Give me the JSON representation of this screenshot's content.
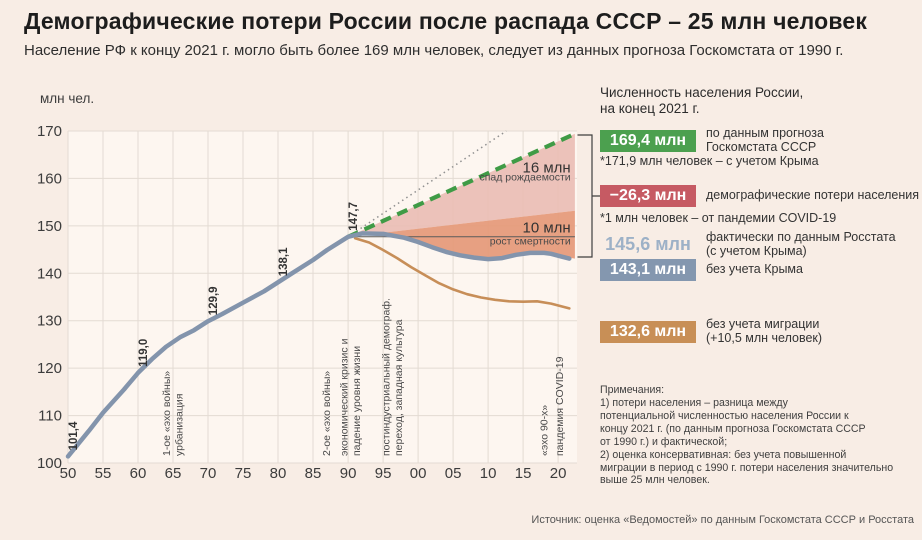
{
  "header": {
    "title": "Демографические потери России после распада СССР – 25 млн человек",
    "subtitle": "Население РФ к концу 2021 г. могло быть более 169 млн человек, следует из данных прогноза Госкомстата от 1990 г."
  },
  "legend": {
    "heading": "Численность населения России,\nна конец 2021 г.",
    "items": [
      {
        "value": "169,4 млн",
        "label": "по данным прогноза\nГоскомстата СССР",
        "color": "#4ca04f"
      },
      {
        "value": "−26,3 млн",
        "label": "демографические потери населения",
        "color": "#c65a63"
      },
      {
        "value": "145,6 млн",
        "label": "фактически по данным Росстата\n(с учетом Крыма)",
        "color": "#9db1c7"
      },
      {
        "value": "143,1 млн",
        "label": "без учета Крыма",
        "color": "#8497af"
      },
      {
        "value": "132,6 млн",
        "label": "без учета миграции\n(+10,5 млн человек)",
        "color": "#c88f56"
      }
    ],
    "footnote_crimea": "*171,9 млн человек – с учетом Крыма",
    "footnote_covid": "*1 млн человек – от пандемии COVID-19"
  },
  "notes": "Примечания:\n1) потери населения – разница между\nпотенциальной численностью населения России к\nконцу 2021 г. (по данным прогноза Госкомстата СССР\nот 1990 г.) и фактической;\n2) оценка консервативная: без учета повышенной\nмиграции в период с 1990 г. потери населения значительно\nвыше 25 млн человек.",
  "source": "Источник: оценка «Ведомостей» по данным Госкомстата СССР и Росстата",
  "chart_data": {
    "type": "line",
    "ylabel": "млн чел.",
    "ylim": [
      100,
      170
    ],
    "xlim": [
      1950,
      2022.7
    ],
    "yticks": [
      100,
      110,
      120,
      130,
      140,
      150,
      160,
      170
    ],
    "xticks": [
      {
        "v": 1950,
        "label": "50"
      },
      {
        "v": 1955,
        "label": "55"
      },
      {
        "v": 1960,
        "label": "60"
      },
      {
        "v": 1965,
        "label": "65"
      },
      {
        "v": 1970,
        "label": "70"
      },
      {
        "v": 1975,
        "label": "75"
      },
      {
        "v": 1980,
        "label": "80"
      },
      {
        "v": 1985,
        "label": "85"
      },
      {
        "v": 1990,
        "label": "90"
      },
      {
        "v": 1995,
        "label": "95"
      },
      {
        "v": 2000,
        "label": "00"
      },
      {
        "v": 2005,
        "label": "05"
      },
      {
        "v": 2010,
        "label": "10"
      },
      {
        "v": 2015,
        "label": "15"
      },
      {
        "v": 2020,
        "label": "20"
      }
    ],
    "colors": {
      "page_bg": "#f8ede5",
      "plot_bg": "#fdf6f0",
      "grid": "#e3dbd3",
      "actual_line": "#8394ac",
      "no_migration_line": "#c78e58",
      "forecast_line": "#3f9b46",
      "trend_line": "#909090",
      "birth_decline_fill": "#eabcb4",
      "mortality_fill": "#e69b7b"
    },
    "series": [
      {
        "name": "trend-extrapolation",
        "color": "#909090",
        "width": 1.5,
        "dash": "1.5 3.5",
        "points": [
          [
            1990,
            147.7
          ],
          [
            2012.6,
            170.0
          ]
        ]
      },
      {
        "name": "goskomstat-forecast",
        "color": "#3f9b46",
        "width": 4.2,
        "dash": "11 7",
        "points": [
          [
            1990,
            147.7
          ],
          [
            2022.4,
            169.4
          ]
        ]
      },
      {
        "name": "without-migration",
        "color": "#c78e58",
        "width": 2.6,
        "points": [
          [
            1991,
            147.4
          ],
          [
            1993,
            146.5
          ],
          [
            1995,
            144.9
          ],
          [
            1997,
            143.2
          ],
          [
            1999,
            141.3
          ],
          [
            2001,
            139.6
          ],
          [
            2003,
            137.9
          ],
          [
            2005,
            136.6
          ],
          [
            2007,
            135.6
          ],
          [
            2009,
            134.9
          ],
          [
            2011,
            134.4
          ],
          [
            2013,
            134.1
          ],
          [
            2015,
            134.0
          ],
          [
            2017,
            134.1
          ],
          [
            2019,
            133.6
          ],
          [
            2021.6,
            132.6
          ]
        ]
      },
      {
        "name": "actual-population",
        "color": "#8394ac",
        "width": 4.5,
        "points": [
          [
            1950,
            101.4
          ],
          [
            1953,
            106.8
          ],
          [
            1955,
            110.6
          ],
          [
            1958,
            115.5
          ],
          [
            1960,
            119.0
          ],
          [
            1962,
            121.9
          ],
          [
            1964,
            124.5
          ],
          [
            1966,
            126.5
          ],
          [
            1968,
            128.0
          ],
          [
            1970,
            129.9
          ],
          [
            1972,
            131.4
          ],
          [
            1975,
            133.8
          ],
          [
            1978,
            136.2
          ],
          [
            1980,
            138.1
          ],
          [
            1982,
            140.0
          ],
          [
            1985,
            142.8
          ],
          [
            1987,
            144.9
          ],
          [
            1990,
            147.7
          ],
          [
            1992,
            148.4
          ],
          [
            1995,
            148.3
          ],
          [
            1998,
            147.5
          ],
          [
            2000,
            146.6
          ],
          [
            2002,
            145.5
          ],
          [
            2004,
            144.5
          ],
          [
            2006,
            143.8
          ],
          [
            2008,
            143.3
          ],
          [
            2010,
            143.0
          ],
          [
            2012,
            143.2
          ],
          [
            2014,
            143.9
          ],
          [
            2016,
            144.3
          ],
          [
            2018,
            144.3
          ],
          [
            2019,
            144.1
          ],
          [
            2020,
            143.7
          ],
          [
            2021.6,
            143.1
          ]
        ]
      }
    ],
    "areas": [
      {
        "name": "birth-rate-decline",
        "fill": "#eabcb4",
        "opacity": 0.9,
        "upper": [
          [
            1990,
            147.7
          ],
          [
            2022.4,
            169.4
          ]
        ],
        "lower": [
          [
            1990,
            147.7
          ],
          [
            2022.4,
            153.2
          ]
        ]
      },
      {
        "name": "mortality-growth",
        "fill": "#e69b7b",
        "opacity": 0.95,
        "upper": [
          [
            1990,
            147.7
          ],
          [
            2022.4,
            153.2
          ]
        ],
        "lower": [
          [
            1990,
            147.7
          ],
          [
            1992,
            148.4
          ],
          [
            1995,
            148.3
          ],
          [
            1998,
            147.5
          ],
          [
            2000,
            146.6
          ],
          [
            2002,
            145.5
          ],
          [
            2004,
            144.5
          ],
          [
            2006,
            143.8
          ],
          [
            2008,
            143.3
          ],
          [
            2010,
            143.0
          ],
          [
            2012,
            143.2
          ],
          [
            2014,
            143.9
          ],
          [
            2016,
            144.3
          ],
          [
            2018,
            144.3
          ],
          [
            2019,
            144.1
          ],
          [
            2020,
            143.7
          ],
          [
            2022.4,
            143.1
          ]
        ]
      }
    ],
    "ref_line": {
      "y": 147.7,
      "x_start": 1990,
      "x_end": 2022.4,
      "color": "#5a5a5a"
    },
    "point_labels": [
      {
        "x": 1950,
        "y": 101.4,
        "text": "101,4"
      },
      {
        "x": 1960,
        "y": 119.0,
        "text": "119,0"
      },
      {
        "x": 1970,
        "y": 129.9,
        "text": "129,9"
      },
      {
        "x": 1980,
        "y": 138.1,
        "text": "138,1"
      },
      {
        "x": 1990,
        "y": 147.7,
        "text": "147,7"
      }
    ],
    "event_labels": [
      {
        "x": 1964.6,
        "lines": [
          "1-ое «эхо войны»",
          "урбанизация"
        ]
      },
      {
        "x": 1987.4,
        "lines": [
          "2-ое «эхо войны»"
        ]
      },
      {
        "x": 1989.9,
        "lines": [
          "экономический кризис и",
          "падение уровня жизни"
        ]
      },
      {
        "x": 1995.9,
        "lines": [
          "постиндустриальный демограф.",
          "переход, западная культура"
        ]
      },
      {
        "x": 2018.5,
        "lines": [
          "«эхо 90-х»"
        ]
      },
      {
        "x": 2020.7,
        "lines": [
          "пандемия COVID-19"
        ]
      }
    ],
    "area_labels": [
      {
        "text": "16 млн",
        "size": 15,
        "x": 2021.8,
        "y": 161.3
      },
      {
        "text": "спад рождаемости",
        "size": 10.5,
        "x": 2021.8,
        "y": 159.6
      },
      {
        "text": "10 млн",
        "size": 15,
        "x": 2021.8,
        "y": 148.6
      },
      {
        "text": "рост смертности",
        "size": 10.5,
        "x": 2021.8,
        "y": 146.1
      }
    ]
  }
}
